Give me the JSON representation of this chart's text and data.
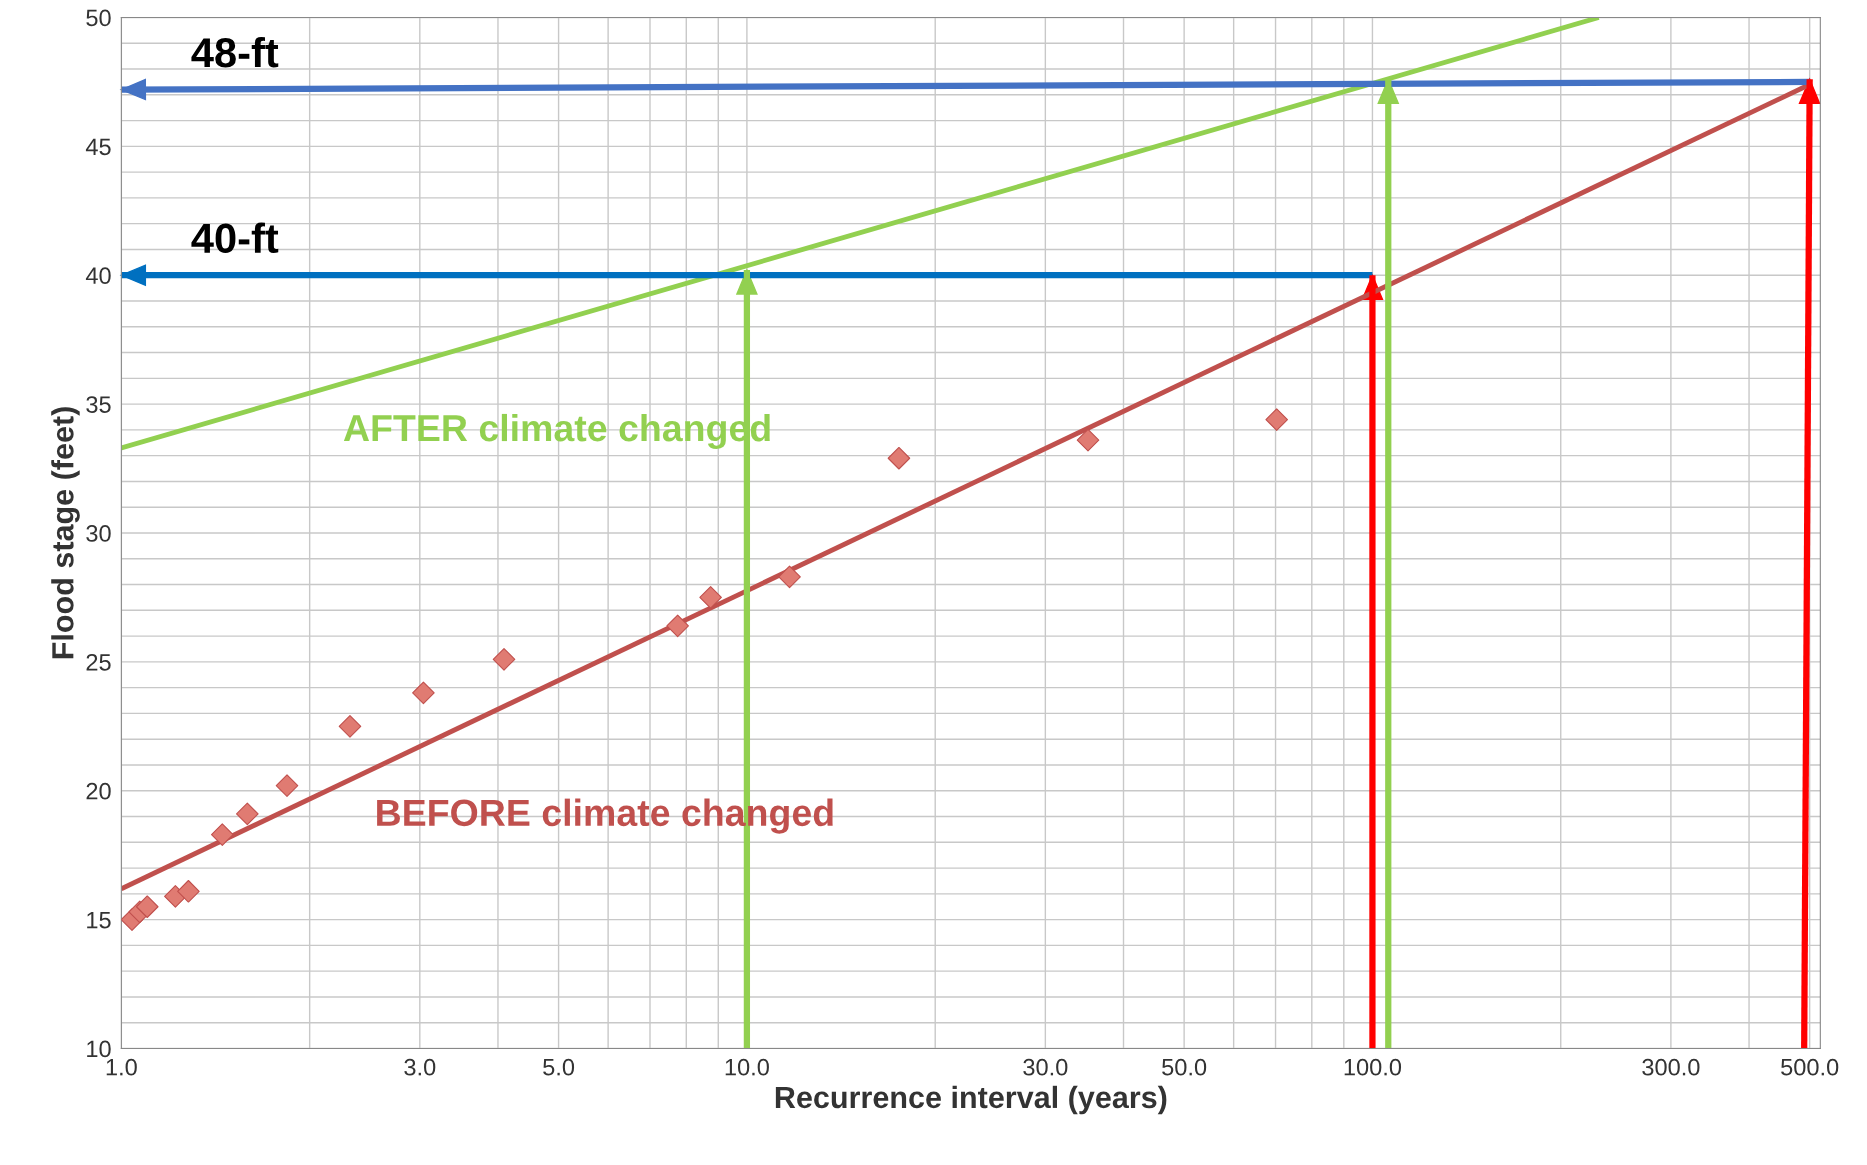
{
  "chart_data": {
    "type": "scatter",
    "xlabel": "Recurrence interval (years)",
    "ylabel": "Flood stage (feet)",
    "log": "x",
    "xlim": [
      1,
      520
    ],
    "ylim": [
      10,
      50
    ],
    "xticks": [
      {
        "value": 1,
        "label": "1.0"
      },
      {
        "value": 3,
        "label": "3.0"
      },
      {
        "value": 5,
        "label": "5.0"
      },
      {
        "value": 10,
        "label": "10.0"
      },
      {
        "value": 30,
        "label": "30.0"
      },
      {
        "value": 50,
        "label": "50.0"
      },
      {
        "value": 100,
        "label": "100.0"
      },
      {
        "value": 300,
        "label": "300.0"
      },
      {
        "value": 500,
        "label": "500.0"
      }
    ],
    "yticks": [
      10,
      15,
      20,
      25,
      30,
      35,
      40,
      45,
      50
    ],
    "grid": true,
    "series": [
      {
        "marker": "diamond",
        "color": "#e07b72",
        "x": [
          1.04,
          1.07,
          1.1,
          1.22,
          1.28,
          1.45,
          1.59,
          1.84,
          2.32,
          3.04,
          4.09,
          7.75,
          8.75,
          11.7,
          17.5,
          35.1,
          70.3
        ],
        "values": [
          15.0,
          15.3,
          15.5,
          15.9,
          16.1,
          18.3,
          19.1,
          20.2,
          22.5,
          23.8,
          25.1,
          26.4,
          27.5,
          28.3,
          32.9,
          33.6,
          34.4
        ]
      },
      {
        "type": "line",
        "name": "BEFORE climate changed",
        "color": "#c0504d",
        "x": [
          1,
          500
        ],
        "values": [
          16.2,
          47.4
        ]
      },
      {
        "type": "line",
        "name": "AFTER climate changed",
        "color": "#92d050",
        "x": [
          1,
          230
        ],
        "values": [
          33.3,
          50
        ]
      },
      {
        "type": "line",
        "color": "#4472c4",
        "x": [
          500,
          1
        ],
        "values": [
          47.5,
          47.2
        ]
      },
      {
        "type": "line",
        "color": "#0070c0",
        "x": [
          100,
          1
        ],
        "values": [
          40,
          40
        ]
      },
      {
        "type": "line",
        "color": "#92d050",
        "x": [
          10,
          10
        ],
        "values": [
          10,
          40.2
        ]
      },
      {
        "type": "line",
        "color": "#92d050",
        "x": [
          106,
          106
        ],
        "values": [
          10,
          47.6
        ]
      },
      {
        "type": "line",
        "color": "#ff0000",
        "x": [
          100,
          100
        ],
        "values": [
          10,
          40
        ]
      },
      {
        "type": "line",
        "color": "#ff0000",
        "x": [
          490,
          500
        ],
        "values": [
          10,
          47.6
        ]
      }
    ],
    "annotations": [
      "48-ft",
      "40-ft"
    ]
  }
}
